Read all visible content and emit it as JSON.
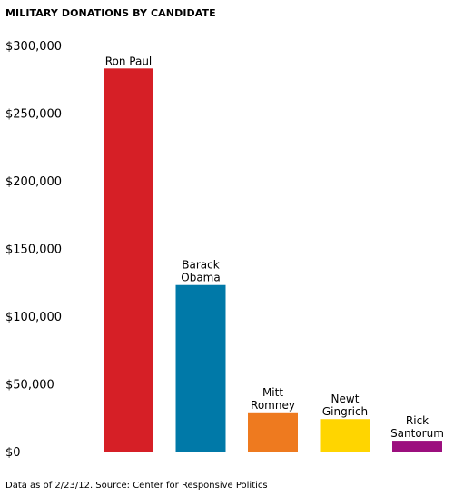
{
  "title": "MILITARY DONATIONS BY CANDIDATE",
  "footnote": "Data as of 2/23/12. Source: Center for Responsive Politics",
  "chart_data": {
    "type": "bar",
    "title": "MILITARY DONATIONS BY CANDIDATE",
    "xlabel": "",
    "ylabel": "",
    "ylim": [
      0,
      300000
    ],
    "grid": false,
    "legend": "none",
    "y_ticks": [
      {
        "value": 0,
        "label": "$0"
      },
      {
        "value": 50000,
        "label": "$50,000"
      },
      {
        "value": 100000,
        "label": "$100,000"
      },
      {
        "value": 150000,
        "label": "$150,000"
      },
      {
        "value": 200000,
        "label": "$200,000"
      },
      {
        "value": 250000,
        "label": "$250,000"
      },
      {
        "value": 300000,
        "label": "$300,000"
      }
    ],
    "bars": [
      {
        "label_lines": [
          "Ron Paul"
        ],
        "value": 283000,
        "color": "#d61f26"
      },
      {
        "label_lines": [
          "Barack",
          "Obama"
        ],
        "value": 123000,
        "color": "#0079a8"
      },
      {
        "label_lines": [
          "Mitt",
          "Romney"
        ],
        "value": 29000,
        "color": "#ee7a1f"
      },
      {
        "label_lines": [
          "Newt",
          "Gingrich"
        ],
        "value": 24000,
        "color": "#ffd500"
      },
      {
        "label_lines": [
          "Rick",
          "Santorum"
        ],
        "value": 8000,
        "color": "#9c0f7e"
      }
    ]
  }
}
